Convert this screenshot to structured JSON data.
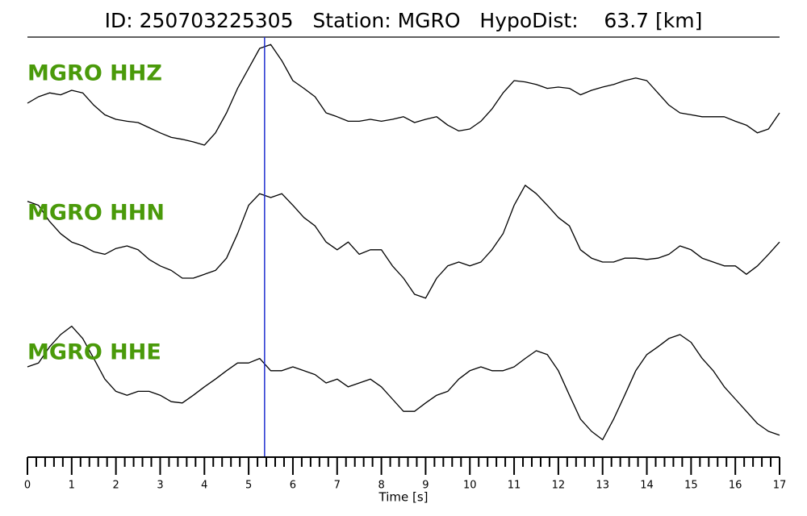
{
  "chart_data": {
    "type": "seismogram",
    "title": "ID: 250703225305   Station: MGRO   HypoDist:    63.7 [km]",
    "xlabel": "Time [s]",
    "xlim": [
      0,
      17
    ],
    "xticks": [
      0,
      1,
      2,
      3,
      4,
      5,
      6,
      7,
      8,
      9,
      10,
      11,
      12,
      13,
      14,
      15,
      16,
      17
    ],
    "minor_xticks": [
      0.2,
      0.4,
      0.6,
      0.8,
      1.2,
      1.4,
      1.6,
      1.8,
      2.2,
      2.4,
      2.6,
      2.8,
      3.2,
      3.4,
      3.6,
      3.8,
      4.2,
      4.4,
      4.6,
      4.8,
      5.2,
      5.4,
      5.6,
      5.8,
      6.2,
      6.4,
      6.6,
      6.8,
      7.2,
      7.4,
      7.6,
      7.8,
      8.2,
      8.4,
      8.6,
      8.8,
      9.2,
      9.4,
      9.6,
      9.8,
      10.2,
      10.4,
      10.6,
      10.8,
      11.2,
      11.4,
      11.6,
      11.8,
      12.2,
      12.4,
      12.6,
      12.8,
      13.2,
      13.4,
      13.6,
      13.8,
      14.2,
      14.4,
      14.6,
      14.8,
      15.2,
      15.4,
      15.6,
      15.8,
      16.2,
      16.4,
      16.6,
      16.8
    ],
    "ylim": [
      -1,
      1
    ],
    "pick_time": 5.36,
    "pick_color": "#1f2fd0",
    "x": [
      0,
      0.25,
      0.5,
      0.75,
      1,
      1.25,
      1.5,
      1.75,
      2,
      2.25,
      2.5,
      2.75,
      3,
      3.25,
      3.5,
      3.75,
      4,
      4.25,
      4.5,
      4.75,
      5,
      5.25,
      5.5,
      5.75,
      6,
      6.25,
      6.5,
      6.75,
      7,
      7.25,
      7.5,
      7.75,
      8,
      8.25,
      8.5,
      8.75,
      9,
      9.25,
      9.5,
      9.75,
      10,
      10.25,
      10.5,
      10.75,
      11,
      11.25,
      11.5,
      11.75,
      12,
      12.25,
      12.5,
      12.75,
      13,
      13.25,
      13.5,
      13.75,
      14,
      14.25,
      14.5,
      14.75,
      15,
      15.25,
      15.5,
      15.75,
      16,
      16.25,
      16.5,
      16.75,
      17
    ],
    "series": [
      {
        "name": "MGRO HHZ",
        "color": "#000000",
        "values": [
          -0.1,
          0,
          0.06,
          0.03,
          0.1,
          0.06,
          -0.13,
          -0.28,
          -0.35,
          -0.38,
          -0.4,
          -0.48,
          -0.56,
          -0.63,
          -0.66,
          -0.7,
          -0.75,
          -0.56,
          -0.25,
          0.13,
          0.44,
          0.75,
          0.81,
          0.56,
          0.25,
          0.13,
          0,
          -0.25,
          -0.31,
          -0.38,
          -0.38,
          -0.35,
          -0.38,
          -0.35,
          -0.31,
          -0.4,
          -0.35,
          -0.31,
          -0.44,
          -0.53,
          -0.5,
          -0.38,
          -0.19,
          0.06,
          0.25,
          0.23,
          0.19,
          0.13,
          0.15,
          0.13,
          0.03,
          0.1,
          0.15,
          0.19,
          0.25,
          0.29,
          0.25,
          0.06,
          -0.13,
          -0.25,
          -0.28,
          -0.31,
          -0.31,
          -0.31,
          -0.38,
          -0.44,
          -0.56,
          -0.5,
          -0.25
        ]
      },
      {
        "name": "MGRO HHN",
        "color": "#000000",
        "values": [
          0.69,
          0.63,
          0.38,
          0.19,
          0.06,
          0,
          -0.09,
          -0.13,
          -0.04,
          0,
          -0.06,
          -0.21,
          -0.31,
          -0.38,
          -0.5,
          -0.5,
          -0.44,
          -0.38,
          -0.19,
          0.19,
          0.63,
          0.81,
          0.75,
          0.81,
          0.63,
          0.44,
          0.31,
          0.06,
          -0.06,
          0.06,
          -0.13,
          -0.06,
          -0.06,
          -0.31,
          -0.5,
          -0.75,
          -0.81,
          -0.5,
          -0.31,
          -0.25,
          -0.31,
          -0.25,
          -0.06,
          0.19,
          0.63,
          0.94,
          0.81,
          0.63,
          0.44,
          0.31,
          -0.06,
          -0.19,
          -0.25,
          -0.25,
          -0.19,
          -0.19,
          -0.21,
          -0.19,
          -0.13,
          0,
          -0.06,
          -0.19,
          -0.25,
          -0.31,
          -0.31,
          -0.44,
          -0.31,
          -0.13,
          0.06
        ]
      },
      {
        "name": "MGRO HHE",
        "color": "#000000",
        "values": [
          0.25,
          0.31,
          0.56,
          0.75,
          0.88,
          0.69,
          0.38,
          0.06,
          -0.13,
          -0.19,
          -0.13,
          -0.13,
          -0.19,
          -0.29,
          -0.31,
          -0.19,
          -0.06,
          0.06,
          0.19,
          0.31,
          0.31,
          0.38,
          0.19,
          0.19,
          0.25,
          0.19,
          0.13,
          0,
          0.06,
          -0.06,
          0,
          0.06,
          -0.06,
          -0.25,
          -0.44,
          -0.44,
          -0.31,
          -0.19,
          -0.13,
          0.06,
          0.19,
          0.25,
          0.19,
          0.19,
          0.25,
          0.38,
          0.5,
          0.44,
          0.19,
          -0.19,
          -0.56,
          -0.75,
          -0.88,
          -0.56,
          -0.19,
          0.19,
          0.44,
          0.56,
          0.69,
          0.75,
          0.63,
          0.38,
          0.19,
          -0.06,
          -0.25,
          -0.44,
          -0.63,
          -0.75,
          -0.81
        ]
      }
    ]
  }
}
